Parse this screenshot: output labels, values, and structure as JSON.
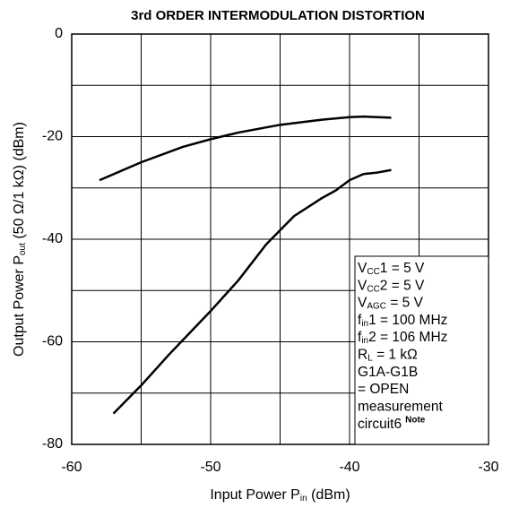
{
  "chart_data": {
    "type": "line",
    "title": "3rd ORDER INTERMODULATION DISTORTION",
    "x_label": [
      "Input Power  P",
      "in",
      " (dBm)"
    ],
    "y_label": [
      "Output Power  P",
      "out",
      " (50 Ω/1 kΩ) (dBm)"
    ],
    "xlim": [
      -60,
      -30
    ],
    "ylim": [
      -80,
      0
    ],
    "xticks": [
      -60,
      -50,
      -40,
      -30
    ],
    "x_minor_ticks": [
      -55,
      -45,
      -35
    ],
    "yticks": [
      -80,
      -60,
      -40,
      -20,
      0
    ],
    "y_minor_ticks": [
      -70,
      -50,
      -30,
      -10
    ],
    "grid": true,
    "series": [
      {
        "color": "#000000",
        "x": [
          -58,
          -55,
          -52,
          -50,
          -48,
          -45,
          -42,
          -40,
          -39,
          -37
        ],
        "values": [
          -28.5,
          -25,
          -22,
          -20.5,
          -19.2,
          -17.7,
          -16.7,
          -16.2,
          -16.1,
          -16.3
        ]
      },
      {
        "color": "#000000",
        "x": [
          -57,
          -55,
          -53,
          -50,
          -48,
          -46,
          -44,
          -42,
          -41,
          -40,
          -39,
          -38,
          -37
        ],
        "values": [
          -74,
          -68.5,
          -62.5,
          -54,
          -48,
          -41,
          -35.5,
          -32,
          -30.5,
          -28.5,
          -27.3,
          -27,
          -26.5
        ]
      }
    ],
    "conditions": [
      [
        "V",
        "CC",
        "1 = 5 V"
      ],
      [
        "V",
        "CC",
        "2 = 5 V"
      ],
      [
        "V",
        "AGC",
        " = 5 V"
      ],
      [
        "f",
        "in",
        "1 = 100 MHz"
      ],
      [
        "f",
        "in",
        "2 = 106 MHz"
      ],
      [
        "R",
        "L",
        " = 1 kΩ"
      ],
      "G1A-G1B",
      " = OPEN",
      "measurement",
      "circuit6"
    ],
    "note": "Note"
  }
}
